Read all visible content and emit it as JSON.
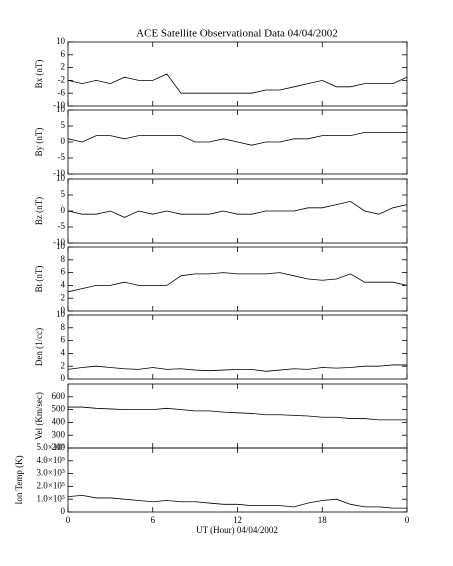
{
  "title": "ACE Satellite Observational Data  04/04/2002",
  "xlabel": "UT (Hour)  04/04/2002",
  "chart_data": [
    {
      "type": "line",
      "ylabel": "Bx (nT)",
      "color": "#000000",
      "x": [
        0,
        1,
        2,
        3,
        4,
        5,
        6,
        7,
        8,
        9,
        10,
        11,
        12,
        13,
        14,
        15,
        16,
        17,
        18,
        19,
        20,
        21,
        22,
        23,
        24
      ],
      "values": [
        -2,
        -3,
        -2,
        -3,
        -1,
        -2,
        -2,
        0,
        -6,
        -6,
        -6,
        -6,
        -6,
        -6,
        -5,
        -5,
        -4,
        -3,
        -2,
        -4,
        -4,
        -3,
        -3,
        -3,
        -1
      ],
      "xlim": [
        0,
        24
      ],
      "xticks": [
        0,
        6,
        12,
        18,
        {
          "value": 24,
          "label": "0"
        }
      ],
      "ylim": [
        -10,
        10
      ],
      "yticks": [
        -10,
        -6,
        -2,
        2,
        6,
        10
      ]
    },
    {
      "type": "line",
      "ylabel": "By (nT)",
      "color": "#000000",
      "x": [
        0,
        1,
        2,
        3,
        4,
        5,
        6,
        7,
        8,
        9,
        10,
        11,
        12,
        13,
        14,
        15,
        16,
        17,
        18,
        19,
        20,
        21,
        22,
        23,
        24
      ],
      "values": [
        1,
        0,
        2,
        2,
        1,
        2,
        2,
        2,
        2,
        0,
        0,
        1,
        0,
        -1,
        0,
        0,
        1,
        1,
        2,
        2,
        2,
        3,
        3,
        3,
        3
      ],
      "xlim": [
        0,
        24
      ],
      "xticks": [
        0,
        6,
        12,
        18,
        {
          "value": 24,
          "label": "0"
        }
      ],
      "ylim": [
        -10,
        10
      ],
      "yticks": [
        -10,
        -5,
        0,
        5,
        10
      ]
    },
    {
      "type": "line",
      "ylabel": "Bz (nT)",
      "color": "#000000",
      "x": [
        0,
        1,
        2,
        3,
        4,
        5,
        6,
        7,
        8,
        9,
        10,
        11,
        12,
        13,
        14,
        15,
        16,
        17,
        18,
        19,
        20,
        21,
        22,
        23,
        24
      ],
      "values": [
        0,
        -1,
        -1,
        0,
        -2,
        0,
        -1,
        0,
        -1,
        -1,
        -1,
        0,
        -1,
        -1,
        0,
        0,
        0,
        1,
        1,
        2,
        3,
        0,
        -1,
        1,
        2
      ],
      "xlim": [
        0,
        24
      ],
      "xticks": [
        0,
        6,
        12,
        18,
        {
          "value": 24,
          "label": "0"
        }
      ],
      "ylim": [
        -10,
        10
      ],
      "yticks": [
        -10,
        -5,
        0,
        5,
        10
      ]
    },
    {
      "type": "line",
      "ylabel": "Bt (nT)",
      "color": "#000000",
      "x": [
        0,
        1,
        2,
        3,
        4,
        5,
        6,
        7,
        8,
        9,
        10,
        11,
        12,
        13,
        14,
        15,
        16,
        17,
        18,
        19,
        20,
        21,
        22,
        23,
        24
      ],
      "values": [
        3,
        3.5,
        4,
        4,
        4.5,
        4,
        4,
        4,
        5.5,
        5.8,
        5.8,
        6,
        5.8,
        5.8,
        5.8,
        6,
        5.5,
        5,
        4.8,
        5,
        5.8,
        4.5,
        4.5,
        4.5,
        4
      ],
      "xlim": [
        0,
        24
      ],
      "xticks": [
        0,
        6,
        12,
        18,
        {
          "value": 24,
          "label": "0"
        }
      ],
      "ylim": [
        0,
        10
      ],
      "yticks": [
        0,
        2,
        4,
        6,
        8,
        10
      ]
    },
    {
      "type": "line",
      "ylabel": "Den (1/cc)",
      "color": "#000000",
      "x": [
        0,
        1,
        2,
        3,
        4,
        5,
        6,
        7,
        8,
        9,
        10,
        11,
        12,
        13,
        14,
        15,
        16,
        17,
        18,
        19,
        20,
        21,
        22,
        23,
        24
      ],
      "values": [
        1.5,
        1.8,
        2,
        1.8,
        1.6,
        1.5,
        1.8,
        1.5,
        1.6,
        1.4,
        1.3,
        1.4,
        1.5,
        1.5,
        1.2,
        1.4,
        1.6,
        1.5,
        1.8,
        1.7,
        1.8,
        2,
        2,
        2.2,
        2.2
      ],
      "xlim": [
        0,
        24
      ],
      "xticks": [
        0,
        6,
        12,
        18,
        {
          "value": 24,
          "label": "0"
        }
      ],
      "ylim": [
        0,
        10
      ],
      "yticks": [
        0,
        2,
        4,
        6,
        8,
        10
      ]
    },
    {
      "type": "line",
      "ylabel": "Vel (Km/sec)",
      "color": "#000000",
      "x": [
        0,
        1,
        2,
        3,
        4,
        5,
        6,
        7,
        8,
        9,
        10,
        11,
        12,
        13,
        14,
        15,
        16,
        17,
        18,
        19,
        20,
        21,
        22,
        23,
        24
      ],
      "values": [
        520,
        520,
        510,
        505,
        500,
        500,
        500,
        510,
        500,
        490,
        490,
        480,
        475,
        470,
        460,
        460,
        455,
        450,
        440,
        440,
        430,
        430,
        420,
        420,
        420
      ],
      "xlim": [
        0,
        24
      ],
      "xticks": [
        0,
        6,
        12,
        18,
        {
          "value": 24,
          "label": "0"
        }
      ],
      "ylim": [
        200,
        700
      ],
      "yticks": [
        200,
        300,
        400,
        500,
        600
      ]
    },
    {
      "type": "line",
      "ylabel": "Ion Temp (K)",
      "color": "#000000",
      "x": [
        0,
        1,
        2,
        3,
        4,
        5,
        6,
        7,
        8,
        9,
        10,
        11,
        12,
        13,
        14,
        15,
        16,
        17,
        18,
        19,
        20,
        21,
        22,
        23,
        24
      ],
      "values": [
        120000,
        130000,
        110000,
        110000,
        100000,
        90000,
        80000,
        90000,
        80000,
        80000,
        70000,
        60000,
        60000,
        50000,
        50000,
        50000,
        40000,
        70000,
        90000,
        100000,
        60000,
        40000,
        40000,
        30000,
        30000
      ],
      "xlim": [
        0,
        24
      ],
      "xticks": [
        0,
        6,
        12,
        18,
        {
          "value": 24,
          "label": "0"
        }
      ],
      "ylim": [
        0,
        500000
      ],
      "yticks": [
        0,
        {
          "value": 100000,
          "label": "1.0×10⁵"
        },
        {
          "value": 200000,
          "label": "2.0×10⁵"
        },
        {
          "value": 300000,
          "label": "3.0×10⁵"
        },
        {
          "value": 400000,
          "label": "4.0×10⁵"
        },
        {
          "value": 500000,
          "label": "5.0×10⁵"
        }
      ]
    }
  ]
}
